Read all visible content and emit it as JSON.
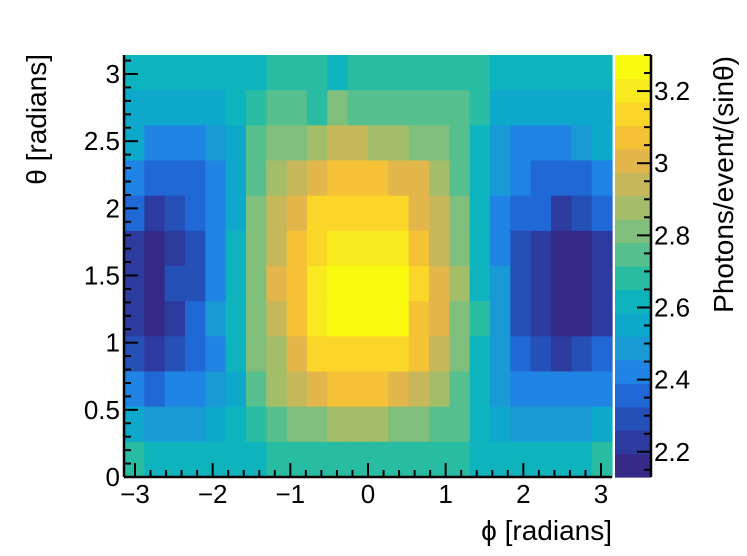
{
  "chart_data": {
    "type": "heatmap",
    "xlabel": "ϕ [radians]",
    "ylabel": "θ [radians]",
    "zlabel": "Photons/event/(sinθ)",
    "xlim": [
      -3.14159,
      3.14159
    ],
    "ylim": [
      0,
      3.14159
    ],
    "zlim": [
      2.13,
      3.3
    ],
    "x_bins": 24,
    "y_bins": 12,
    "x_ticks": [
      {
        "value": -3,
        "label": "−3"
      },
      {
        "value": -2,
        "label": "−2"
      },
      {
        "value": -1,
        "label": "−1"
      },
      {
        "value": 0,
        "label": "0"
      },
      {
        "value": 1,
        "label": "1"
      },
      {
        "value": 2,
        "label": "2"
      },
      {
        "value": 3,
        "label": "3"
      }
    ],
    "y_ticks": [
      {
        "value": 0,
        "label": "0"
      },
      {
        "value": 0.5,
        "label": "0.5"
      },
      {
        "value": 1,
        "label": "1"
      },
      {
        "value": 1.5,
        "label": "1.5"
      },
      {
        "value": 2,
        "label": "2"
      },
      {
        "value": 2.5,
        "label": "2.5"
      },
      {
        "value": 3,
        "label": "3"
      }
    ],
    "z_ticks": [
      {
        "value": 2.2,
        "label": "2.2"
      },
      {
        "value": 2.4,
        "label": "2.4"
      },
      {
        "value": 2.6,
        "label": "2.6"
      },
      {
        "value": 2.8,
        "label": "2.8"
      },
      {
        "value": 3.0,
        "label": "3"
      },
      {
        "value": 3.2,
        "label": "3.2"
      }
    ],
    "palette": [
      "#352a87",
      "#2d3b9e",
      "#2450b8",
      "#1f68d6",
      "#1f84e3",
      "#1a9ad4",
      "#0ea8cc",
      "#0db4bd",
      "#28bca3",
      "#55bf8e",
      "#7fbf7b",
      "#a4bd69",
      "#c6b85a",
      "#e2b64a",
      "#f5c236",
      "#fbd628",
      "#f8ea1e",
      "#f9fb0e"
    ],
    "values": [
      [
        2.64,
        2.62,
        2.62,
        2.62,
        2.62,
        2.64,
        2.64,
        2.66,
        2.67,
        2.66,
        2.64,
        2.67,
        2.7,
        2.7,
        2.7,
        2.66,
        2.68,
        2.68,
        2.64,
        2.62,
        2.62,
        2.62,
        2.62,
        2.64
      ],
      [
        2.58,
        2.56,
        2.53,
        2.53,
        2.58,
        2.61,
        2.7,
        2.76,
        2.74,
        2.7,
        2.82,
        2.78,
        2.74,
        2.76,
        2.76,
        2.74,
        2.72,
        2.65,
        2.58,
        2.55,
        2.55,
        2.52,
        2.53,
        2.58
      ],
      [
        2.53,
        2.44,
        2.41,
        2.43,
        2.48,
        2.55,
        2.72,
        2.8,
        2.82,
        2.88,
        2.92,
        2.92,
        2.9,
        2.9,
        2.84,
        2.8,
        2.75,
        2.6,
        2.5,
        2.45,
        2.44,
        2.43,
        2.48,
        2.53
      ],
      [
        2.44,
        2.38,
        2.36,
        2.37,
        2.45,
        2.52,
        2.74,
        2.87,
        2.94,
        3.0,
        3.06,
        3.06,
        3.06,
        3.02,
        2.98,
        2.88,
        2.78,
        2.6,
        2.46,
        2.4,
        2.36,
        2.36,
        2.38,
        2.44
      ],
      [
        2.34,
        2.26,
        2.3,
        2.33,
        2.42,
        2.58,
        2.8,
        2.93,
        3.02,
        3.12,
        3.14,
        3.14,
        3.14,
        3.14,
        3.02,
        2.95,
        2.8,
        2.62,
        2.44,
        2.36,
        2.33,
        2.26,
        2.27,
        2.34
      ],
      [
        2.24,
        2.17,
        2.24,
        2.28,
        2.4,
        2.6,
        2.82,
        2.92,
        3.08,
        3.14,
        3.2,
        3.22,
        3.22,
        3.2,
        3.1,
        2.95,
        2.82,
        2.62,
        2.44,
        2.32,
        2.26,
        2.17,
        2.17,
        2.24
      ],
      [
        2.22,
        2.17,
        2.28,
        2.32,
        2.43,
        2.62,
        2.84,
        2.98,
        3.1,
        3.2,
        3.26,
        3.3,
        3.3,
        3.24,
        3.16,
        3.02,
        2.86,
        2.64,
        2.46,
        2.3,
        2.22,
        2.14,
        2.14,
        2.22
      ],
      [
        2.22,
        2.17,
        2.26,
        2.34,
        2.48,
        2.62,
        2.84,
        2.92,
        3.08,
        3.18,
        3.28,
        3.28,
        3.28,
        3.24,
        3.1,
        3.0,
        2.84,
        2.68,
        2.5,
        2.32,
        2.26,
        2.14,
        2.17,
        2.22
      ],
      [
        2.32,
        2.24,
        2.3,
        2.34,
        2.44,
        2.62,
        2.8,
        2.9,
        3.02,
        3.12,
        3.14,
        3.14,
        3.14,
        3.14,
        3.04,
        2.96,
        2.82,
        2.64,
        2.46,
        2.34,
        2.3,
        2.26,
        2.28,
        2.34
      ],
      [
        2.44,
        2.38,
        2.4,
        2.42,
        2.5,
        2.56,
        2.74,
        2.86,
        2.96,
        3.0,
        3.04,
        3.04,
        3.04,
        3.0,
        2.96,
        2.88,
        2.78,
        2.6,
        2.5,
        2.44,
        2.42,
        2.4,
        2.42,
        2.44
      ],
      [
        2.56,
        2.48,
        2.46,
        2.46,
        2.52,
        2.6,
        2.68,
        2.74,
        2.8,
        2.84,
        2.88,
        2.9,
        2.86,
        2.84,
        2.8,
        2.74,
        2.72,
        2.6,
        2.54,
        2.5,
        2.48,
        2.46,
        2.46,
        2.56
      ],
      [
        2.66,
        2.62,
        2.6,
        2.6,
        2.6,
        2.6,
        2.64,
        2.7,
        2.7,
        2.7,
        2.68,
        2.7,
        2.7,
        2.7,
        2.7,
        2.7,
        2.68,
        2.62,
        2.62,
        2.6,
        2.6,
        2.6,
        2.62,
        2.66
      ]
    ]
  }
}
